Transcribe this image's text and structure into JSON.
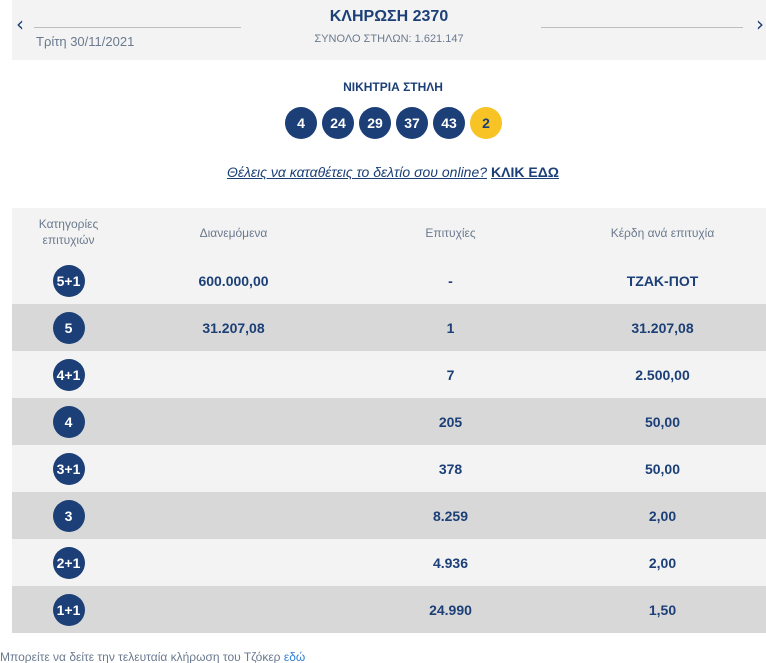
{
  "header": {
    "prev_arrow": "‹",
    "next_arrow": "›",
    "date": "Τρίτη 30/11/2021",
    "title": "ΚΛΗΡΩΣΗ 2370",
    "subtitle": "ΣΥΝΟΛΟ ΣΤΗΛΩΝ: 1.621.147"
  },
  "winning": {
    "label": "ΝΙΚΗΤΡΙΑ ΣΤΗΛΗ",
    "numbers": [
      "4",
      "24",
      "29",
      "37",
      "43"
    ],
    "joker": "2"
  },
  "online": {
    "question": "Θέλεις να καταθέτεις το δελτίο σου online?",
    "cta": "ΚΛΙΚ ΕΔΩ"
  },
  "table": {
    "headers": {
      "category": "Κατηγορίες επιτυχιών",
      "distributed": "Διανεμόμενα",
      "winners": "Επιτυχίες",
      "prize": "Κέρδη ανά επιτυχία"
    },
    "rows": [
      {
        "category": "5+1",
        "distributed": "600.000,00",
        "winners": "-",
        "prize": "ΤΖΑΚ-ΠΟΤ"
      },
      {
        "category": "5",
        "distributed": "31.207,08",
        "winners": "1",
        "prize": "31.207,08"
      },
      {
        "category": "4+1",
        "distributed": "",
        "winners": "7",
        "prize": "2.500,00"
      },
      {
        "category": "4",
        "distributed": "",
        "winners": "205",
        "prize": "50,00"
      },
      {
        "category": "3+1",
        "distributed": "",
        "winners": "378",
        "prize": "50,00"
      },
      {
        "category": "3",
        "distributed": "",
        "winners": "8.259",
        "prize": "2,00"
      },
      {
        "category": "2+1",
        "distributed": "",
        "winners": "4.936",
        "prize": "2,00"
      },
      {
        "category": "1+1",
        "distributed": "",
        "winners": "24.990",
        "prize": "1,50"
      }
    ]
  },
  "footer": {
    "text": "Μπορείτε να δείτε την τελευταία κλήρωση του Τζόκερ",
    "link": "εδώ"
  },
  "colors": {
    "primary": "#1b3f76",
    "joker": "#f7c325",
    "row_light": "#f3f3f3",
    "row_dark": "#d8d8d8",
    "link": "#2f7fd6"
  }
}
